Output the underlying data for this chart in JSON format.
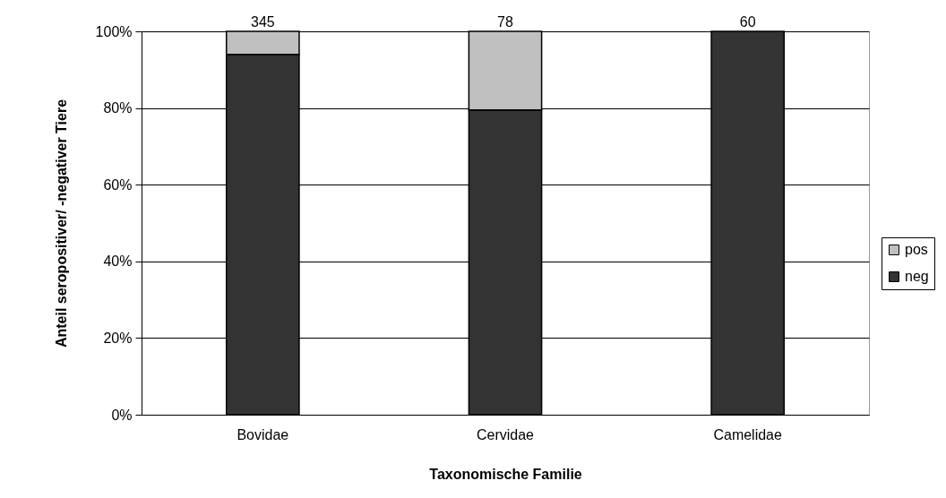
{
  "chart_data": {
    "type": "bar",
    "stacked": true,
    "xlabel": "Taxonomische Familie",
    "ylabel": "Anteil seropositiver/ -negativer Tiere",
    "categories": [
      "Bovidae",
      "Cervidae",
      "Camelidae"
    ],
    "series": [
      {
        "name": "neg",
        "color": "#333333",
        "values": [
          94,
          79.5,
          100
        ]
      },
      {
        "name": "pos",
        "color": "#c0c0c0",
        "values": [
          6,
          20.5,
          0
        ]
      }
    ],
    "annotations": [
      {
        "text": "345",
        "x": "Bovidae",
        "y": 100
      },
      {
        "text": "78",
        "x": "Cervidae",
        "y": 100
      },
      {
        "text": "60",
        "x": "Camelidae",
        "y": 100
      }
    ],
    "ylim": [
      0,
      100
    ],
    "yticks": [
      {
        "value": 0,
        "label": "0%"
      },
      {
        "value": 20,
        "label": "20%"
      },
      {
        "value": 40,
        "label": "40%"
      },
      {
        "value": 60,
        "label": "60%"
      },
      {
        "value": 80,
        "label": "80%"
      },
      {
        "value": 100,
        "label": "100%"
      }
    ],
    "grid": "y",
    "legend": "right"
  }
}
